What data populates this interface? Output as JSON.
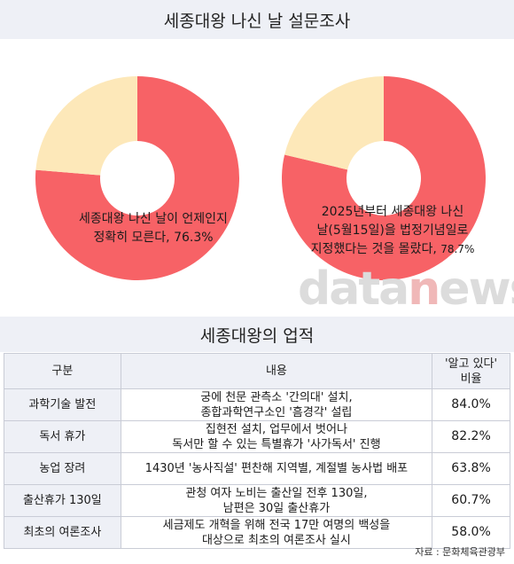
{
  "title": "세종대왕 나신 날 설문조사",
  "colors": {
    "red": "#f76266",
    "cream": "#fde8b9"
  },
  "chart_data": [
    {
      "type": "pie",
      "values": [
        76.3,
        23.7
      ],
      "label_lines": [
        "세종대왕 나신 날이 언제인지",
        "정확히 모른다, 76.3%"
      ]
    },
    {
      "type": "pie",
      "values": [
        78.7,
        21.3
      ],
      "label_lines": [
        "2025년부터 세종대왕 나신",
        "날(5월15일)을 법정기념일로",
        "지정했다는 것을 몰랐다, ",
        "78.7%"
      ]
    }
  ],
  "watermark": {
    "part1": "data",
    "part2": "n",
    "part3": "ews"
  },
  "table": {
    "title": "세종대왕의 업적",
    "headers": {
      "category": "구분",
      "content": "내용",
      "ratio_line1": "'알고 있다'",
      "ratio_line2": "비율"
    },
    "rows": [
      {
        "category": "과학기술 발전",
        "line1": "궁에 천문 관측소 '간의대' 설치,",
        "line2": "종합과학연구소인 '흠경각' 설립",
        "ratio": "84.0%"
      },
      {
        "category": "독서 휴가",
        "line1": "집현전 설치, 업무에서 벗어나",
        "line2": "독서만 할 수 있는 특별휴가 '사가독서' 진행",
        "ratio": "82.2%"
      },
      {
        "category": "농업 장려",
        "line1": "1430년 '농사직설' 편찬해 지역별, 계절별 농사법 배포",
        "line2": "",
        "ratio": "63.8%"
      },
      {
        "category": "출산휴가 130일",
        "line1": "관청 여자 노비는 출산일 전후 130일,",
        "line2": "남편은 30일 출산휴가",
        "ratio": "60.7%"
      },
      {
        "category": "최초의 여론조사",
        "line1": "세금제도 개혁을 위해 전국 17만 여명의 백성을",
        "line2": "대상으로 최초의 여론조사 실시",
        "ratio": "58.0%"
      }
    ]
  },
  "source": "자료 : 문화체육관광부"
}
